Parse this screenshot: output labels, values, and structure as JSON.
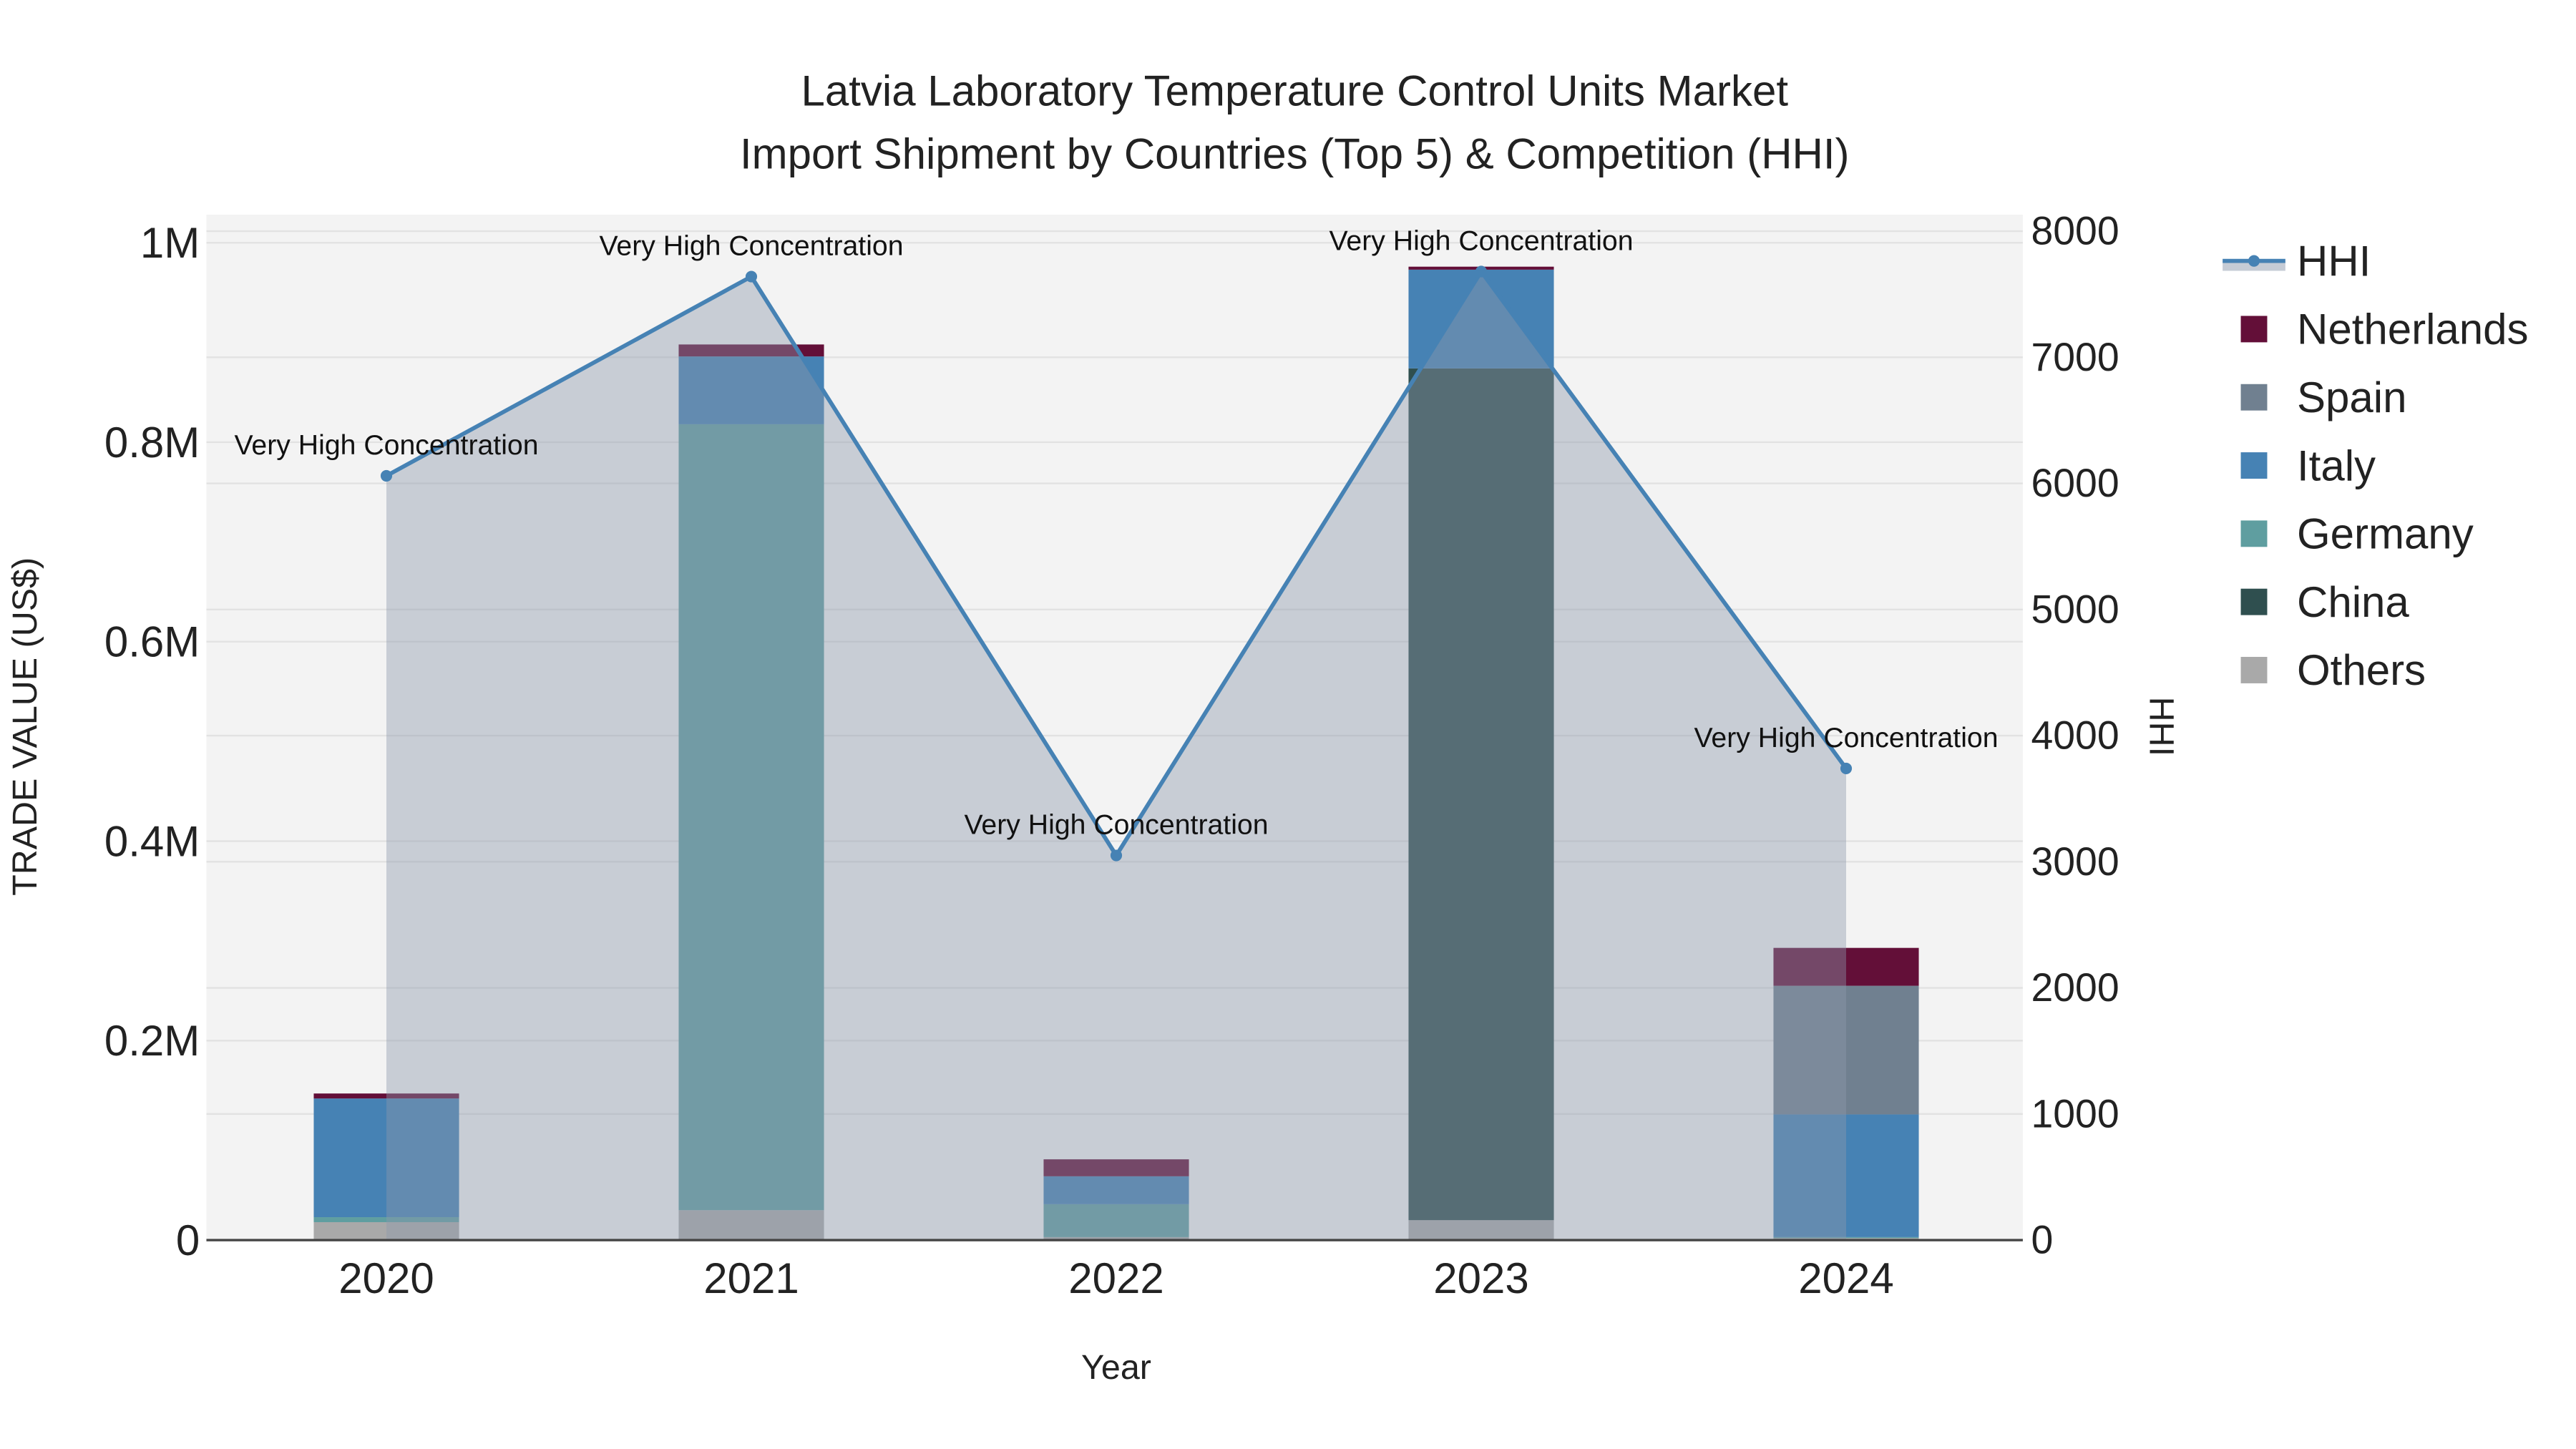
{
  "chart_data": {
    "type": "bar",
    "title_line1": "Latvia Laboratory Temperature Control Units Market",
    "title_line2": "Import Shipment by Countries (Top 5) & Competition (HHI)",
    "xlabel": "Year",
    "ylabel": "TRADE VALUE (US$)",
    "y2label": "HHI",
    "categories": [
      "2020",
      "2021",
      "2022",
      "2023",
      "2024"
    ],
    "ylim": [
      0,
      1000000
    ],
    "y_ticks": [
      {
        "v": 0,
        "label": "0"
      },
      {
        "v": 200000,
        "label": "0.2M"
      },
      {
        "v": 400000,
        "label": "0.4M"
      },
      {
        "v": 600000,
        "label": "0.6M"
      },
      {
        "v": 800000,
        "label": "0.8M"
      },
      {
        "v": 1000000,
        "label": "1M"
      }
    ],
    "y2lim": [
      0,
      8000
    ],
    "y2_ticks": [
      {
        "v": 0,
        "label": "0"
      },
      {
        "v": 1000,
        "label": "1000"
      },
      {
        "v": 2000,
        "label": "2000"
      },
      {
        "v": 3000,
        "label": "3000"
      },
      {
        "v": 4000,
        "label": "4000"
      },
      {
        "v": 5000,
        "label": "5000"
      },
      {
        "v": 6000,
        "label": "6000"
      },
      {
        "v": 7000,
        "label": "7000"
      },
      {
        "v": 8000,
        "label": "8000"
      }
    ],
    "grid": true,
    "legend_position": "right",
    "series": [
      {
        "name": "Others",
        "color": "#A9A9A9",
        "values": [
          18000,
          30000,
          3000,
          20000,
          2000
        ]
      },
      {
        "name": "China",
        "color": "#2F4F4F",
        "values": [
          0,
          0,
          0,
          854000,
          0
        ]
      },
      {
        "name": "Germany",
        "color": "#5F9EA0",
        "values": [
          5000,
          788000,
          33000,
          0,
          1000
        ]
      },
      {
        "name": "Italy",
        "color": "#4682B4",
        "values": [
          119000,
          68000,
          28000,
          99000,
          123000
        ]
      },
      {
        "name": "Spain",
        "color": "#708090",
        "values": [
          0,
          0,
          0,
          0,
          129000
        ]
      },
      {
        "name": "Netherlands",
        "color": "#630F38",
        "values": [
          5000,
          12000,
          17000,
          3000,
          38000
        ]
      }
    ],
    "hhi": {
      "name": "HHI",
      "color": "#4682B4",
      "values": [
        6060,
        7640,
        3050,
        7680,
        3740
      ],
      "annotations": [
        "Very High Concentration",
        "Very High Concentration",
        "Very High Concentration",
        "Very High Concentration",
        "Very High Concentration"
      ]
    },
    "legend_order": [
      "HHI",
      "Netherlands",
      "Spain",
      "Italy",
      "Germany",
      "China",
      "Others"
    ]
  }
}
